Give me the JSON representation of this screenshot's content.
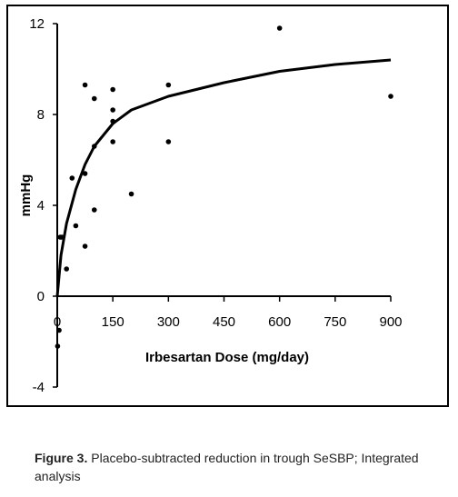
{
  "chart_data": {
    "type": "scatter",
    "title": "",
    "xlabel": "Irbesartan Dose (mg/day)",
    "ylabel": "mmHg",
    "xlim": [
      0,
      900
    ],
    "ylim": [
      -4,
      12
    ],
    "x_ticks": [
      "0",
      "150",
      "300",
      "450",
      "600",
      "750",
      "900"
    ],
    "y_ticks": [
      "12",
      "8",
      "4",
      "0",
      "-4"
    ],
    "x_tick_values": [
      0,
      150,
      300,
      450,
      600,
      750,
      900
    ],
    "y_tick_values": [
      12,
      8,
      4,
      0,
      -4
    ],
    "grid": false,
    "legend": "none",
    "series": [
      {
        "kind": "points",
        "x": [
          1,
          5,
          8,
          12,
          25,
          40,
          50,
          75,
          75,
          75,
          100,
          100,
          100,
          150,
          150,
          150,
          150,
          200,
          300,
          300,
          600,
          900
        ],
        "y": [
          -2.2,
          -1.5,
          2.6,
          2.6,
          1.2,
          5.2,
          3.1,
          9.3,
          5.4,
          2.2,
          8.7,
          6.6,
          3.8,
          9.1,
          8.2,
          7.7,
          6.8,
          4.5,
          9.3,
          6.8,
          11.8,
          8.8
        ]
      },
      {
        "kind": "fitted-curve",
        "x": [
          0,
          10,
          25,
          50,
          75,
          100,
          150,
          200,
          300,
          450,
          600,
          750,
          900
        ],
        "y": [
          0,
          1.8,
          3.2,
          4.7,
          5.8,
          6.6,
          7.6,
          8.2,
          8.8,
          9.4,
          9.9,
          10.2,
          10.4
        ]
      }
    ]
  },
  "caption": {
    "figure_label": "Figure 3.",
    "text": " Placebo-subtracted reduction in trough SeSBP; Integrated analysis"
  }
}
